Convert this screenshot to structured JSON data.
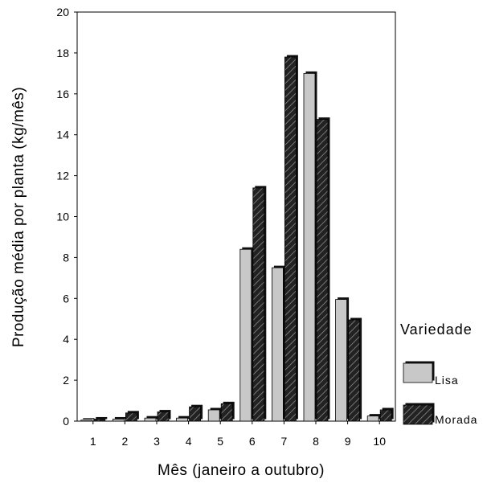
{
  "chart_data": {
    "type": "bar",
    "xlabel": "Mês (janeiro a outubro)",
    "ylabel": "Produção média por planta (kg/mês)",
    "ylim": [
      0,
      20
    ],
    "yticks": [
      0,
      2,
      4,
      6,
      8,
      10,
      12,
      14,
      16,
      18,
      20
    ],
    "categories": [
      "1",
      "2",
      "3",
      "4",
      "5",
      "6",
      "7",
      "8",
      "9",
      "10"
    ],
    "legend_title": "Variedade",
    "legend_position": "right",
    "grid": false,
    "series": [
      {
        "name": "Lisa",
        "color": "#c8c8c8",
        "pattern": "solid",
        "values": [
          0.05,
          0.1,
          0.15,
          0.15,
          0.55,
          8.4,
          7.5,
          17.0,
          5.95,
          0.25
        ]
      },
      {
        "name": "Morada",
        "color": "#1a1a1a",
        "pattern": "diagonal-hatch",
        "values": [
          0.1,
          0.4,
          0.45,
          0.7,
          0.85,
          11.4,
          17.8,
          14.75,
          4.95,
          0.55
        ]
      }
    ]
  }
}
